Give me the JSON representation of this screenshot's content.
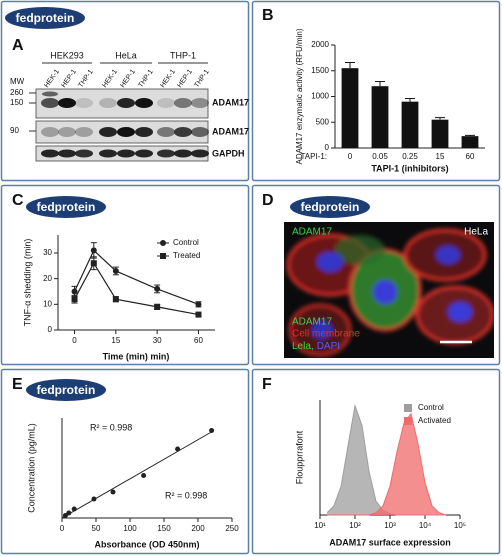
{
  "logo": "fedprotein",
  "panel_letters": [
    "A",
    "B",
    "C",
    "D",
    "E",
    "F"
  ],
  "blot": {
    "mw_label": "MW",
    "mw_markers": [
      "260",
      "150",
      "90"
    ],
    "groups": [
      "HEK293",
      "HeLa",
      "THP-1"
    ],
    "lanes": [
      "HEK-1",
      "HEP-1",
      "THP-1",
      "HEK-1",
      "HEP-1",
      "THP-1",
      "HEK-1",
      "HEP-1",
      "THP-1"
    ],
    "rows": [
      "ADAM17",
      "ADAM17",
      "GAPDH"
    ]
  },
  "image": {
    "channel_label": "ADAM17",
    "cell_line": "HeLa",
    "legend": [
      {
        "text": "ADAM17",
        "color": "#3fd14a"
      },
      {
        "text": "Cell membrane",
        "color": "#e0302a"
      },
      {
        "text": "Lela,",
        "color": "#3fd14a"
      },
      {
        "text": "DAPI",
        "color": "#4a63ff"
      }
    ]
  },
  "chart_data": [
    {
      "type": "bar",
      "categories": [
        "0",
        "0.05",
        "0.25",
        "15",
        "60"
      ],
      "category_prefix": "TAPI-1:",
      "values": [
        1550,
        1200,
        900,
        550,
        230
      ],
      "errors": [
        110,
        90,
        60,
        40,
        15
      ],
      "color": "#111111",
      "ylim": [
        0,
        2000
      ],
      "yticks": [
        0,
        500,
        1000,
        1500,
        2000
      ],
      "ylabel": "ADAM17 enzymatic activity (RFU/min)",
      "xlabel": "TAPI-1 (inhibitors)"
    },
    {
      "type": "line",
      "x": [
        0,
        7,
        15,
        30,
        60
      ],
      "xscale": "tick-spaced",
      "xlim": [
        -6,
        72
      ],
      "xticks": [
        0,
        15,
        30,
        60
      ],
      "ylim": [
        0,
        37
      ],
      "yticks": [
        0,
        10,
        20,
        30
      ],
      "ylabel": "TNF-α shedding (min)",
      "xlabel": "Time (min) min)",
      "legend": "upper right",
      "series": [
        {
          "name": "Control",
          "color": "#222222",
          "marker": "circle",
          "values": [
            15,
            31,
            23,
            16,
            10
          ],
          "errors": [
            2,
            3,
            1.5,
            1.5,
            1
          ]
        },
        {
          "name": "Treated",
          "color": "#222222",
          "marker": "square",
          "values": [
            12,
            26,
            12,
            9,
            6
          ],
          "errors": [
            1.5,
            2.5,
            1,
            1,
            0.5
          ]
        }
      ]
    },
    {
      "type": "scatter",
      "x": [
        5,
        10,
        18,
        47,
        75,
        120,
        170,
        220
      ],
      "values": [
        0.05,
        0.1,
        0.18,
        0.38,
        0.52,
        0.85,
        1.38,
        1.75
      ],
      "color": "#222222",
      "trendline": true,
      "xlim": [
        0,
        250
      ],
      "xticks": [
        0,
        50,
        100,
        150,
        200,
        250
      ],
      "ylim": [
        0,
        2
      ],
      "ylabel": "Concentration (pg/mL)",
      "xlabel": "Absorbance (OD 450nm)",
      "annotations": [
        "R² = 0.998",
        "R² = 0.998"
      ]
    },
    {
      "type": "area",
      "xscale": "log",
      "xlim": [
        10,
        100000
      ],
      "xticks": [
        {
          "value": 10,
          "label": "10¹"
        },
        {
          "value": 100,
          "label": "10²"
        },
        {
          "value": 1000,
          "label": "10³"
        },
        {
          "value": 10000,
          "label": "10⁴"
        },
        {
          "value": 100000,
          "label": "10⁵"
        }
      ],
      "ylim": [
        0,
        100
      ],
      "ylabel": "Floupprrafont",
      "xlabel": "ADAM17 surface expression",
      "legend": "upper right",
      "x": [
        16,
        25,
        40,
        63,
        100,
        158,
        251,
        398,
        631,
        1000,
        1585,
        2512,
        3981,
        6310,
        10000,
        15849,
        25119,
        39811
      ],
      "series": [
        {
          "name": "Control",
          "color": "#9e9e9e",
          "values": [
            2,
            8,
            25,
            60,
            95,
            78,
            38,
            12,
            4,
            1,
            0,
            0,
            0,
            0,
            0,
            0,
            0,
            0
          ]
        },
        {
          "name": "Activated",
          "color": "#f06a6a",
          "values": [
            0,
            0,
            0,
            0,
            0,
            0,
            0,
            2,
            8,
            25,
            55,
            80,
            88,
            62,
            28,
            8,
            2,
            0
          ]
        }
      ]
    }
  ]
}
